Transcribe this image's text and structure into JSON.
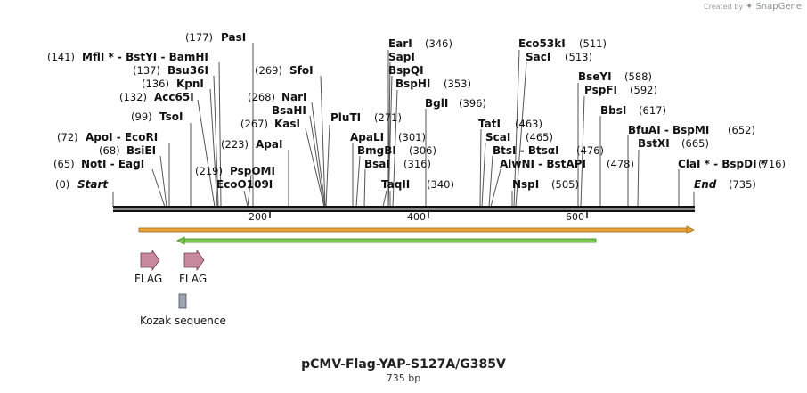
{
  "credit": {
    "prefix": "Created by",
    "brand": "SnapGene"
  },
  "map": {
    "title": "pCMV-Flag-YAP-S127A/G385V",
    "length_label": "735 bp",
    "total_bp": 735,
    "ticks": [
      200,
      400,
      600
    ],
    "start_label": "Start",
    "start_pos": "(0)",
    "end_label": "End",
    "end_pos": "(735)"
  },
  "enzymes": [
    {
      "name": "PasI",
      "pos": 177
    },
    {
      "name": "MflI * - BstYI - BamHI",
      "pos": 141
    },
    {
      "name": "Bsu36I",
      "pos": 137
    },
    {
      "name": "KpnI",
      "pos": 136
    },
    {
      "name": "Acc65I",
      "pos": 132
    },
    {
      "name": "TsoI",
      "pos": 99
    },
    {
      "name": "ApoI - EcoRI",
      "pos": 72
    },
    {
      "name": "BsiEI",
      "pos": 68
    },
    {
      "name": "NotI - EagI",
      "pos": 65
    },
    {
      "name": "SfoI",
      "pos": 269
    },
    {
      "name": "NarI",
      "pos": 268
    },
    {
      "name": "BsaHI",
      "pos": 268
    },
    {
      "name": "KasI",
      "pos": 267
    },
    {
      "name": "ApaI",
      "pos": 223
    },
    {
      "name": "PspOMI",
      "pos": 219
    },
    {
      "name": "EcoO109I",
      "pos": 219
    },
    {
      "name": "PluTI",
      "pos": 271
    },
    {
      "name": "ApaLI",
      "pos": 301
    },
    {
      "name": "BmgBI",
      "pos": 306
    },
    {
      "name": "BsaI",
      "pos": 316
    },
    {
      "name": "TaqII",
      "pos": 340
    },
    {
      "name": "EarI",
      "pos": 346
    },
    {
      "name": "SapI",
      "pos": 346
    },
    {
      "name": "BspQI",
      "pos": 346
    },
    {
      "name": "BspHI",
      "pos": 353
    },
    {
      "name": "BglI",
      "pos": 396
    },
    {
      "name": "Eco53kI",
      "pos": 511
    },
    {
      "name": "SacI",
      "pos": 513
    },
    {
      "name": "TatI",
      "pos": 463
    },
    {
      "name": "ScaI",
      "pos": 465
    },
    {
      "name": "BtsI - BtsαI",
      "pos": 476
    },
    {
      "name": "AlwNI - BstAPI",
      "pos": 478
    },
    {
      "name": "NspI",
      "pos": 505
    },
    {
      "name": "BseYI",
      "pos": 588
    },
    {
      "name": "PspFI",
      "pos": 592
    },
    {
      "name": "BbsI",
      "pos": 617
    },
    {
      "name": "BfuAI - BspMI",
      "pos": 652
    },
    {
      "name": "BstXI",
      "pos": 665
    },
    {
      "name": "ClaI * - BspDI *",
      "pos": 716
    }
  ],
  "features": {
    "orange_bar_color": "#e8a23a",
    "green_bar_color": "#7ec850",
    "flag_color": "#c8899e",
    "kozak_color": "#9aa3b0",
    "flag_labels": [
      "FLAG",
      "FLAG"
    ],
    "kozak_label": "Kozak sequence"
  }
}
